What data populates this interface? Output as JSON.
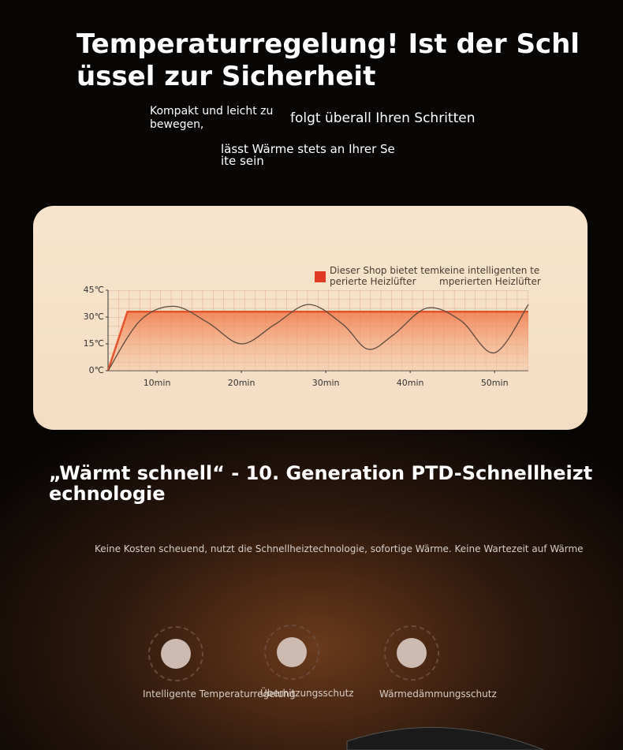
{
  "header": {
    "title": "Temperaturregelung! Ist der Schl\nüssel zur Sicherheit"
  },
  "taglines": [
    "Kompakt und leicht zu\n bewegen,",
    "folgt überall Ihren Schritten",
    "lässt Wärme stets an Ihrer Se\nite sein"
  ],
  "chart": {
    "type": "line",
    "xlim": [
      4.2,
      54
    ],
    "ylim": [
      0,
      45
    ],
    "xticks": [
      {
        "value": 10,
        "label": "10min"
      },
      {
        "value": 20,
        "label": "20min"
      },
      {
        "value": 30,
        "label": "30min"
      },
      {
        "value": 40,
        "label": "40min"
      },
      {
        "value": 50,
        "label": "50min"
      }
    ],
    "yticks": [
      {
        "value": 0,
        "label": "0℃"
      },
      {
        "value": 15,
        "label": "15℃"
      },
      {
        "value": 30,
        "label": "30℃"
      },
      {
        "value": 45,
        "label": "45℃"
      }
    ],
    "series": [
      {
        "name": "Dieser Shop bietet tem\nperierte Heizlüfter",
        "color": "#e5532c",
        "fill": true,
        "x": [
          4.2,
          6.5,
          54
        ],
        "values": [
          0,
          33,
          33
        ]
      },
      {
        "name": "keine intelligenten te\nmperierten Heizlüfter",
        "color": "#5b4a3e",
        "fill": false,
        "x": [
          4.2,
          8,
          12,
          16,
          20,
          24,
          28,
          32,
          35,
          38,
          42,
          46,
          50,
          54
        ],
        "values": [
          0,
          28,
          36,
          27,
          15,
          26,
          37,
          26,
          12,
          20,
          35,
          28,
          10,
          37
        ]
      }
    ]
  },
  "feature": {
    "title": "„Wärmt schnell“ - 10. Generation PTD-Schnellheizt\nechnologie",
    "description": "Keine Kosten scheuend, nutzt die Schnellheiztechnologie, sofortige Wärme. Keine Wartezeit auf Wärme"
  },
  "icons": [
    "Intelligente Temperaturregelung",
    "Überhitzungsschutz",
    "Wärmedämmungsschutz"
  ]
}
